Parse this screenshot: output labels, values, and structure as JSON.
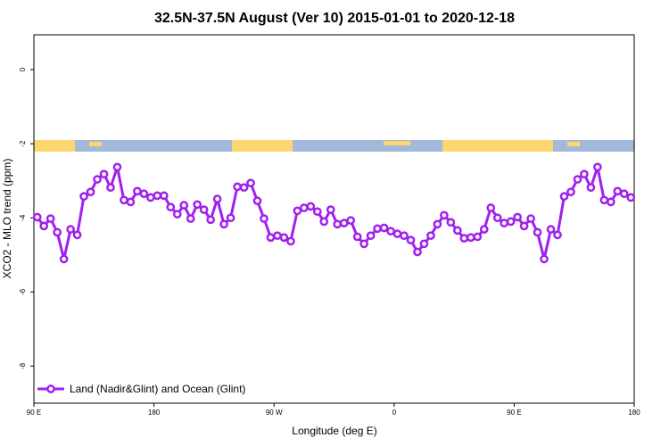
{
  "chart_data": {
    "type": "line",
    "title": "32.5N-37.5N August (Ver 10)   2015-01-01 to 2020-12-18",
    "xlabel": "Longitude (deg E)",
    "ylabel": "XCO2 - MLO trend (ppm)",
    "x": [
      92.5,
      97.5,
      102.5,
      107.5,
      112.5,
      117.5,
      122.5,
      127.5,
      132.5,
      137.5,
      142.5,
      147.5,
      152.5,
      157.5,
      162.5,
      167.5,
      172.5,
      177.5,
      182.5,
      187.5,
      192.5,
      197.5,
      202.5,
      207.5,
      212.5,
      217.5,
      222.5,
      227.5,
      232.5,
      237.5,
      242.5,
      247.5,
      252.5,
      257.5,
      262.5,
      267.5,
      272.5,
      277.5,
      282.5,
      287.5,
      292.5,
      297.5,
      302.5,
      307.5,
      312.5,
      317.5,
      322.5,
      327.5,
      332.5,
      337.5,
      342.5,
      347.5,
      352.5,
      357.5,
      362.5,
      367.5,
      372.5,
      377.5,
      382.5,
      387.5,
      392.5,
      397.5,
      402.5,
      407.5,
      412.5,
      417.5,
      422.5,
      427.5,
      432.5,
      437.5,
      442.5,
      447.5,
      452.5,
      457.5,
      462.5,
      467.5,
      472.5,
      477.5,
      482.5,
      487.5,
      492.5,
      497.5,
      502.5,
      507.5,
      512.5,
      517.5,
      522.5,
      527.5,
      532.5,
      537.5
    ],
    "series": [
      {
        "name": "Land (Nadir&Glint) and Ocean (Glint)",
        "color": "#a020f0",
        "values": [
          -3.98,
          -4.22,
          -4.02,
          -4.39,
          -5.11,
          -4.31,
          -4.46,
          -3.42,
          -3.3,
          -2.96,
          -2.82,
          -3.18,
          -2.63,
          -3.52,
          -3.57,
          -3.28,
          -3.35,
          -3.45,
          -3.4,
          -3.4,
          -3.71,
          -3.9,
          -3.66,
          -4.02,
          -3.64,
          -3.78,
          -4.05,
          -3.49,
          -4.17,
          -4.0,
          -3.16,
          -3.18,
          -3.06,
          -3.54,
          -4.02,
          -4.53,
          -4.48,
          -4.53,
          -4.63,
          -3.81,
          -3.73,
          -3.69,
          -3.83,
          -4.1,
          -3.78,
          -4.17,
          -4.14,
          -4.07,
          -4.51,
          -4.7,
          -4.48,
          -4.29,
          -4.27,
          -4.36,
          -4.43,
          -4.48,
          -4.6,
          -4.92,
          -4.7,
          -4.48,
          -4.17,
          -3.93,
          -4.12,
          -4.34,
          -4.55,
          -4.53,
          -4.51,
          -4.31,
          -3.73,
          -4.0,
          -4.14,
          -4.1,
          -3.98,
          -4.22,
          -4.02,
          -4.39,
          -5.11,
          -4.31,
          -4.46,
          -3.42,
          -3.3,
          -2.96,
          -2.82,
          -3.18,
          -2.63,
          -3.52,
          -3.57,
          -3.28,
          -3.35,
          -3.45
        ]
      }
    ],
    "xlim": [
      90,
      540
    ],
    "ylim": [
      -9.0,
      0.94
    ],
    "xticks": [
      {
        "value": 90,
        "label": "90 E"
      },
      180,
      {
        "value": 270,
        "label": "90 W"
      },
      {
        "value": 360,
        "label": "0"
      },
      {
        "value": 450,
        "label": "90 E"
      },
      {
        "value": 540,
        "label": "180"
      }
    ],
    "yticks": [
      0,
      -2,
      -4,
      -6,
      -8
    ],
    "legend": "lower left"
  }
}
